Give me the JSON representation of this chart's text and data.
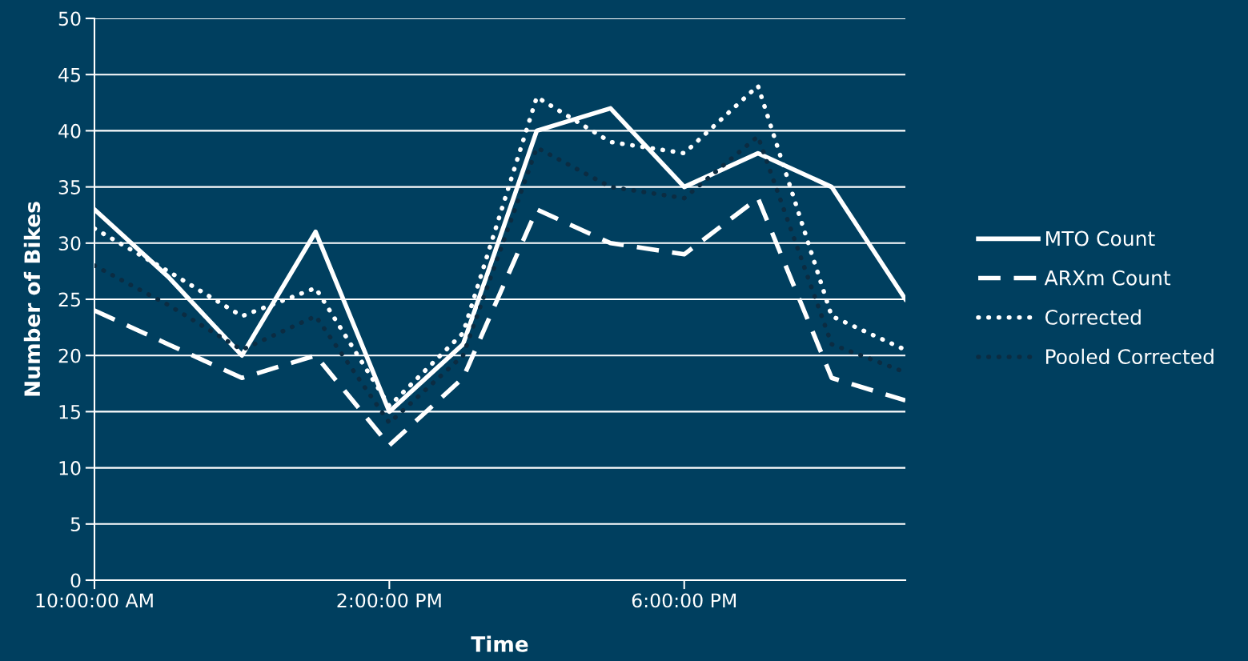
{
  "chart_data": {
    "type": "line",
    "xlabel": "Time",
    "ylabel": "Number of Bikes",
    "x": [
      10,
      11,
      12,
      13,
      14,
      15,
      16,
      17,
      18,
      19,
      20,
      21
    ],
    "xlim": [
      10,
      21
    ],
    "xticks": [
      {
        "value": 10,
        "label": "10:00:00 AM"
      },
      {
        "value": 14,
        "label": "2:00:00 PM"
      },
      {
        "value": 18,
        "label": "6:00:00 PM"
      }
    ],
    "ylim": [
      0,
      50
    ],
    "yticks": [
      0,
      5,
      10,
      15,
      20,
      25,
      30,
      35,
      40,
      45,
      50
    ],
    "grid": "y",
    "legend": "right",
    "series": [
      {
        "name": "MTO Count",
        "color": "#ffffff",
        "line_style": "solid",
        "values": [
          33,
          27,
          20,
          31,
          15,
          21,
          40,
          42,
          35,
          38,
          35,
          25
        ]
      },
      {
        "name": "ARXm Count",
        "color": "#ffffff",
        "line_style": "dashed",
        "values": [
          24,
          21,
          18,
          20,
          12,
          18,
          33,
          30,
          29,
          34,
          18,
          16
        ]
      },
      {
        "name": "Corrected",
        "color": "#ffffff",
        "line_style": "dotted",
        "values": [
          31.3,
          27.5,
          23.5,
          26,
          15.5,
          22,
          43,
          39,
          38,
          44,
          23.5,
          20.5
        ]
      },
      {
        "name": "Pooled Corrected",
        "color": "#0b2c42",
        "line_style": "dotted",
        "values": [
          28,
          24.5,
          20.5,
          23.5,
          14,
          20,
          38.5,
          35,
          34,
          39.5,
          21,
          18.5
        ]
      }
    ]
  }
}
